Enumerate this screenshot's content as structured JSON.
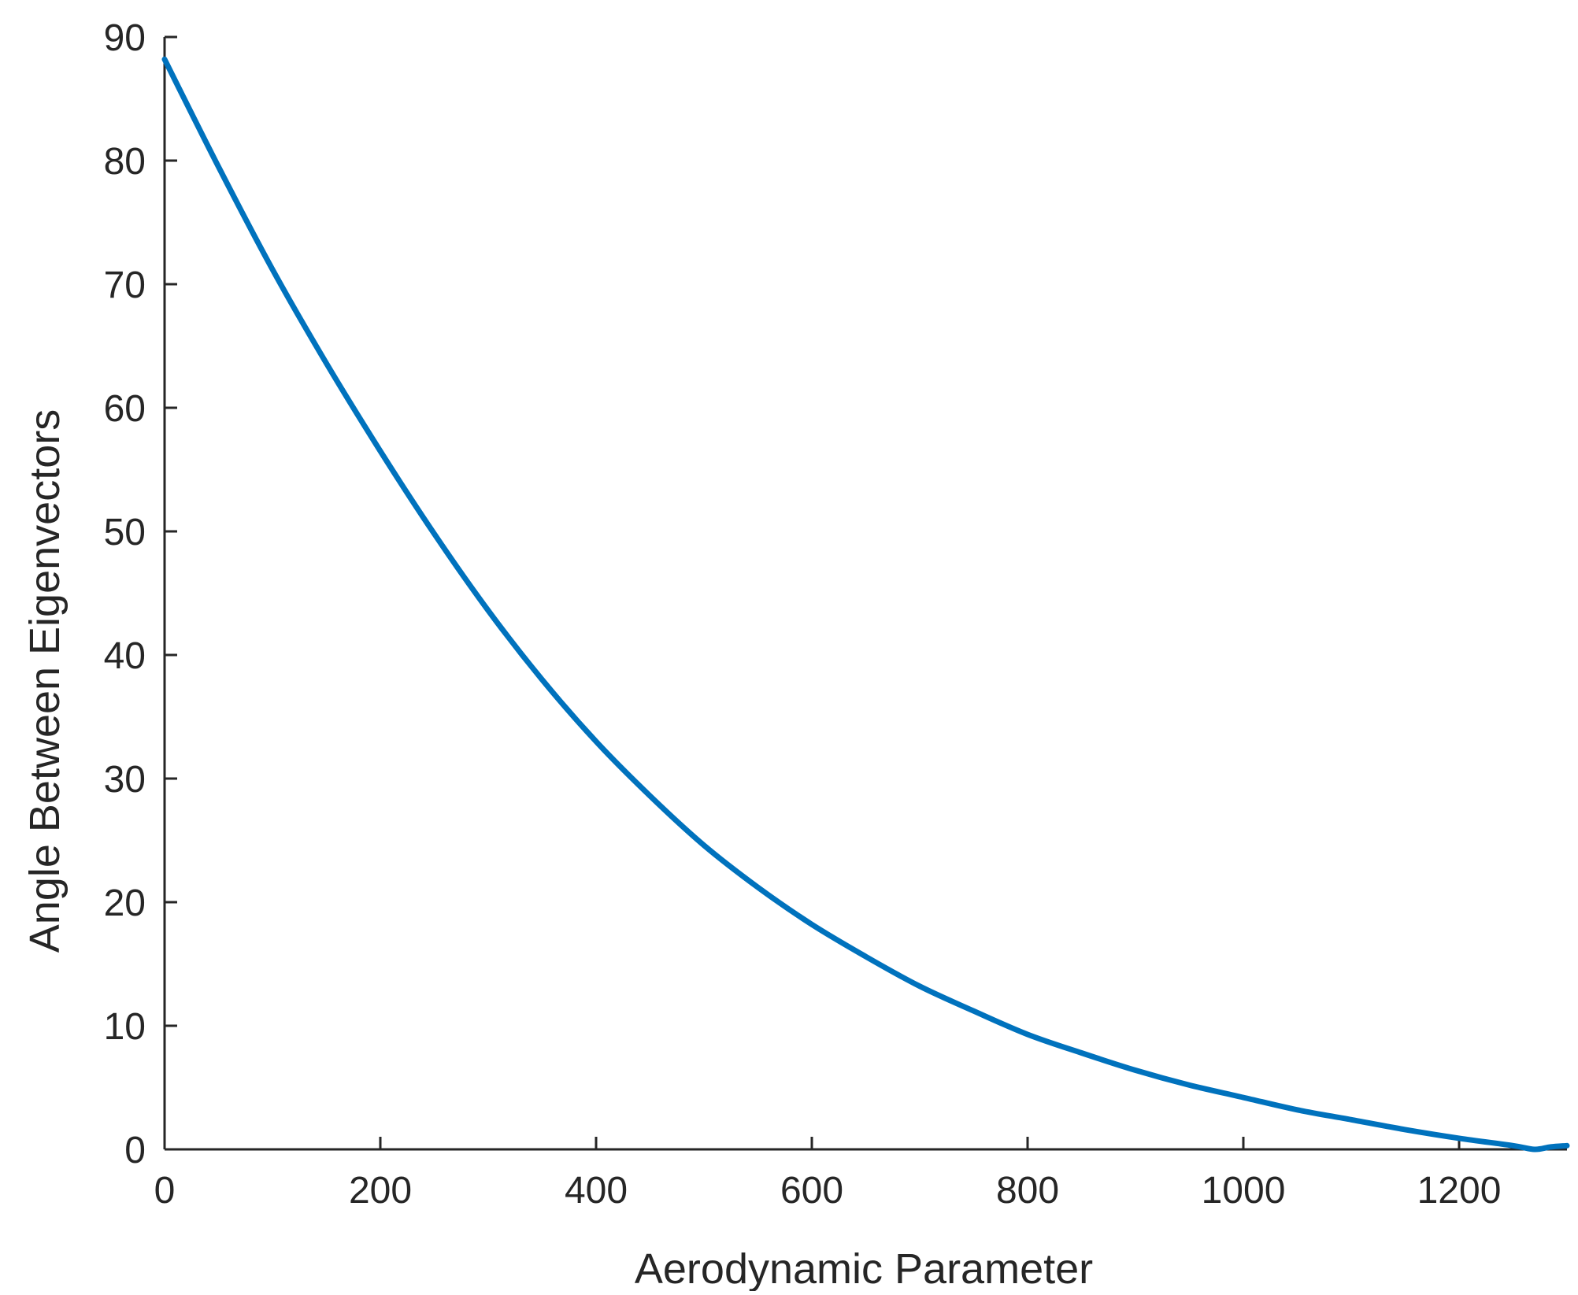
{
  "chart_data": {
    "type": "line",
    "xlabel": "Aerodynamic Parameter",
    "ylabel": "Angle Between Eigenvectors",
    "xlim": [
      0,
      1300
    ],
    "ylim": [
      0,
      90
    ],
    "xticks": [
      0,
      200,
      400,
      600,
      800,
      1000,
      1200
    ],
    "yticks": [
      0,
      10,
      20,
      30,
      40,
      50,
      60,
      70,
      80,
      90
    ],
    "grid": false,
    "series": [
      {
        "color": "#0072BD",
        "x": [
          0,
          50,
          100,
          150,
          200,
          250,
          300,
          350,
          400,
          450,
          500,
          550,
          600,
          650,
          700,
          750,
          800,
          850,
          900,
          950,
          1000,
          1050,
          1100,
          1150,
          1200,
          1250,
          1270,
          1285,
          1300
        ],
        "y": [
          88.2,
          79.5,
          71.2,
          63.6,
          56.5,
          49.8,
          43.6,
          38.0,
          33.0,
          28.6,
          24.6,
          21.2,
          18.2,
          15.6,
          13.2,
          11.2,
          9.3,
          7.8,
          6.4,
          5.2,
          4.2,
          3.2,
          2.4,
          1.6,
          0.9,
          0.3,
          0.0,
          0.2,
          0.3
        ]
      }
    ]
  }
}
